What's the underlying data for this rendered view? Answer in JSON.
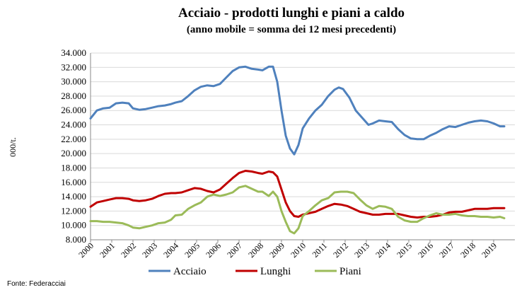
{
  "chart_data": {
    "type": "line",
    "title": "Acciaio - prodotti lunghi e piani a caldo",
    "subtitle": "(anno mobile = somma dei  12 mesi precedenti)",
    "ylabel": "000/t.",
    "xlabel": "",
    "ylim": [
      8000,
      34000
    ],
    "xlim": [
      2000,
      2020
    ],
    "y_ticks": [
      "8.000",
      "10.000",
      "12.000",
      "14.000",
      "16.000",
      "18.000",
      "20.000",
      "22.000",
      "24.000",
      "26.000",
      "28.000",
      "30.000",
      "32.000",
      "34.000"
    ],
    "x_ticks": [
      "2000",
      "2001",
      "2002",
      "2003",
      "2004",
      "2005",
      "2006",
      "2007",
      "2008",
      "2009",
      "2010",
      "2011",
      "2012",
      "2013",
      "2014",
      "2015",
      "2016",
      "2017",
      "2018",
      "2019"
    ],
    "grid": "horizontal",
    "legend_position": "bottom",
    "source": "Fonte: Federacciai",
    "series": [
      {
        "name": "Acciaio",
        "color": "#4f81bd",
        "points": [
          [
            2000.0,
            24900
          ],
          [
            2000.3,
            26000
          ],
          [
            2000.6,
            26300
          ],
          [
            2000.9,
            26400
          ],
          [
            2001.2,
            27000
          ],
          [
            2001.5,
            27100
          ],
          [
            2001.8,
            27000
          ],
          [
            2002.0,
            26300
          ],
          [
            2002.3,
            26100
          ],
          [
            2002.6,
            26200
          ],
          [
            2002.9,
            26400
          ],
          [
            2003.2,
            26600
          ],
          [
            2003.5,
            26700
          ],
          [
            2003.8,
            26900
          ],
          [
            2004.0,
            27100
          ],
          [
            2004.3,
            27300
          ],
          [
            2004.6,
            28000
          ],
          [
            2004.9,
            28800
          ],
          [
            2005.2,
            29300
          ],
          [
            2005.5,
            29500
          ],
          [
            2005.8,
            29400
          ],
          [
            2006.1,
            29700
          ],
          [
            2006.4,
            30600
          ],
          [
            2006.7,
            31500
          ],
          [
            2007.0,
            32000
          ],
          [
            2007.3,
            32100
          ],
          [
            2007.6,
            31800
          ],
          [
            2007.9,
            31700
          ],
          [
            2008.1,
            31600
          ],
          [
            2008.4,
            32100
          ],
          [
            2008.6,
            32100
          ],
          [
            2008.8,
            30000
          ],
          [
            2009.0,
            26000
          ],
          [
            2009.2,
            22500
          ],
          [
            2009.4,
            20700
          ],
          [
            2009.6,
            19900
          ],
          [
            2009.8,
            21200
          ],
          [
            2010.0,
            23500
          ],
          [
            2010.3,
            24900
          ],
          [
            2010.6,
            26000
          ],
          [
            2010.9,
            26800
          ],
          [
            2011.2,
            28000
          ],
          [
            2011.5,
            28900
          ],
          [
            2011.7,
            29200
          ],
          [
            2011.9,
            29000
          ],
          [
            2012.2,
            27800
          ],
          [
            2012.5,
            26000
          ],
          [
            2012.8,
            25000
          ],
          [
            2013.1,
            24000
          ],
          [
            2013.3,
            24200
          ],
          [
            2013.6,
            24600
          ],
          [
            2013.9,
            24500
          ],
          [
            2014.2,
            24400
          ],
          [
            2014.5,
            23400
          ],
          [
            2014.8,
            22600
          ],
          [
            2015.1,
            22100
          ],
          [
            2015.4,
            22000
          ],
          [
            2015.7,
            22000
          ],
          [
            2016.0,
            22500
          ],
          [
            2016.3,
            22900
          ],
          [
            2016.6,
            23400
          ],
          [
            2016.9,
            23800
          ],
          [
            2017.2,
            23700
          ],
          [
            2017.5,
            24000
          ],
          [
            2017.8,
            24300
          ],
          [
            2018.1,
            24500
          ],
          [
            2018.4,
            24600
          ],
          [
            2018.7,
            24500
          ],
          [
            2019.0,
            24200
          ],
          [
            2019.3,
            23800
          ],
          [
            2019.5,
            23800
          ]
        ]
      },
      {
        "name": "Lunghi",
        "color": "#c00000",
        "points": [
          [
            2000.0,
            12600
          ],
          [
            2000.3,
            13200
          ],
          [
            2000.6,
            13400
          ],
          [
            2000.9,
            13600
          ],
          [
            2001.2,
            13800
          ],
          [
            2001.5,
            13800
          ],
          [
            2001.8,
            13700
          ],
          [
            2002.0,
            13500
          ],
          [
            2002.3,
            13400
          ],
          [
            2002.6,
            13500
          ],
          [
            2002.9,
            13700
          ],
          [
            2003.2,
            14100
          ],
          [
            2003.5,
            14400
          ],
          [
            2003.8,
            14500
          ],
          [
            2004.0,
            14500
          ],
          [
            2004.3,
            14600
          ],
          [
            2004.6,
            14900
          ],
          [
            2004.9,
            15200
          ],
          [
            2005.2,
            15100
          ],
          [
            2005.5,
            14800
          ],
          [
            2005.8,
            14600
          ],
          [
            2006.1,
            15000
          ],
          [
            2006.4,
            15800
          ],
          [
            2006.7,
            16600
          ],
          [
            2007.0,
            17300
          ],
          [
            2007.3,
            17600
          ],
          [
            2007.6,
            17500
          ],
          [
            2007.9,
            17300
          ],
          [
            2008.1,
            17200
          ],
          [
            2008.4,
            17500
          ],
          [
            2008.6,
            17400
          ],
          [
            2008.8,
            16800
          ],
          [
            2009.0,
            15000
          ],
          [
            2009.2,
            13200
          ],
          [
            2009.4,
            12000
          ],
          [
            2009.6,
            11300
          ],
          [
            2009.8,
            11200
          ],
          [
            2010.0,
            11500
          ],
          [
            2010.3,
            11700
          ],
          [
            2010.6,
            11900
          ],
          [
            2010.9,
            12300
          ],
          [
            2011.2,
            12700
          ],
          [
            2011.5,
            13000
          ],
          [
            2011.8,
            12900
          ],
          [
            2012.1,
            12700
          ],
          [
            2012.4,
            12300
          ],
          [
            2012.7,
            11900
          ],
          [
            2013.0,
            11700
          ],
          [
            2013.3,
            11500
          ],
          [
            2013.6,
            11500
          ],
          [
            2013.9,
            11600
          ],
          [
            2014.2,
            11600
          ],
          [
            2014.5,
            11600
          ],
          [
            2014.8,
            11400
          ],
          [
            2015.1,
            11200
          ],
          [
            2015.4,
            11100
          ],
          [
            2015.7,
            11200
          ],
          [
            2016.0,
            11200
          ],
          [
            2016.3,
            11300
          ],
          [
            2016.6,
            11500
          ],
          [
            2016.9,
            11800
          ],
          [
            2017.2,
            11900
          ],
          [
            2017.5,
            11900
          ],
          [
            2017.8,
            12100
          ],
          [
            2018.1,
            12300
          ],
          [
            2018.4,
            12300
          ],
          [
            2018.7,
            12300
          ],
          [
            2019.0,
            12400
          ],
          [
            2019.3,
            12400
          ],
          [
            2019.5,
            12400
          ]
        ]
      },
      {
        "name": "Piani",
        "color": "#9bbb59",
        "points": [
          [
            2000.0,
            10600
          ],
          [
            2000.3,
            10600
          ],
          [
            2000.6,
            10500
          ],
          [
            2000.9,
            10500
          ],
          [
            2001.2,
            10400
          ],
          [
            2001.5,
            10300
          ],
          [
            2001.8,
            10000
          ],
          [
            2002.0,
            9700
          ],
          [
            2002.3,
            9600
          ],
          [
            2002.6,
            9800
          ],
          [
            2002.9,
            10000
          ],
          [
            2003.2,
            10300
          ],
          [
            2003.5,
            10400
          ],
          [
            2003.8,
            10800
          ],
          [
            2004.0,
            11400
          ],
          [
            2004.3,
            11500
          ],
          [
            2004.6,
            12300
          ],
          [
            2004.9,
            12800
          ],
          [
            2005.2,
            13200
          ],
          [
            2005.5,
            14000
          ],
          [
            2005.8,
            14300
          ],
          [
            2006.1,
            14100
          ],
          [
            2006.4,
            14300
          ],
          [
            2006.7,
            14600
          ],
          [
            2007.0,
            15300
          ],
          [
            2007.3,
            15500
          ],
          [
            2007.6,
            15100
          ],
          [
            2007.9,
            14700
          ],
          [
            2008.1,
            14700
          ],
          [
            2008.4,
            14100
          ],
          [
            2008.6,
            14700
          ],
          [
            2008.8,
            14000
          ],
          [
            2009.0,
            12000
          ],
          [
            2009.2,
            10500
          ],
          [
            2009.4,
            9200
          ],
          [
            2009.6,
            8900
          ],
          [
            2009.8,
            9600
          ],
          [
            2010.0,
            11300
          ],
          [
            2010.3,
            12000
          ],
          [
            2010.6,
            12800
          ],
          [
            2010.9,
            13500
          ],
          [
            2011.2,
            13800
          ],
          [
            2011.5,
            14600
          ],
          [
            2011.8,
            14700
          ],
          [
            2012.1,
            14700
          ],
          [
            2012.4,
            14500
          ],
          [
            2012.7,
            13600
          ],
          [
            2013.0,
            12800
          ],
          [
            2013.3,
            12300
          ],
          [
            2013.6,
            12700
          ],
          [
            2013.9,
            12600
          ],
          [
            2014.2,
            12300
          ],
          [
            2014.5,
            11200
          ],
          [
            2014.8,
            10700
          ],
          [
            2015.1,
            10500
          ],
          [
            2015.4,
            10500
          ],
          [
            2015.7,
            11000
          ],
          [
            2016.0,
            11400
          ],
          [
            2016.3,
            11700
          ],
          [
            2016.6,
            11500
          ],
          [
            2016.9,
            11500
          ],
          [
            2017.2,
            11600
          ],
          [
            2017.5,
            11400
          ],
          [
            2017.8,
            11300
          ],
          [
            2018.1,
            11300
          ],
          [
            2018.4,
            11200
          ],
          [
            2018.7,
            11200
          ],
          [
            2019.0,
            11100
          ],
          [
            2019.3,
            11200
          ],
          [
            2019.5,
            11000
          ]
        ]
      }
    ]
  }
}
